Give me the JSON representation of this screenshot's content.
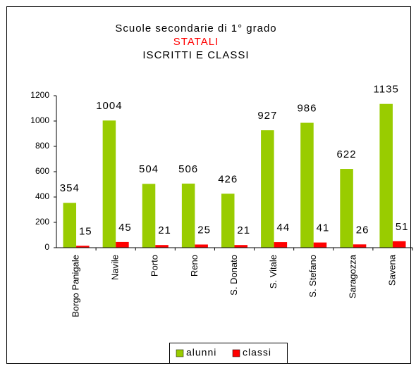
{
  "chart_data": {
    "type": "bar",
    "title": [
      "Scuole secondarie di 1° grado",
      "STATALI",
      "ISCRITTI E CLASSI"
    ],
    "title_colors": [
      "#000000",
      "#ff0000",
      "#000000"
    ],
    "categories": [
      "Borgo Panigale",
      "Navile",
      "Porto",
      "Reno",
      "S. Donato",
      "S. Vitale",
      "S. Stefano",
      "Saragozza",
      "Savena"
    ],
    "series": [
      {
        "name": "alunni",
        "color": "#99cc00",
        "values": [
          354,
          1004,
          504,
          506,
          426,
          927,
          986,
          622,
          1135
        ]
      },
      {
        "name": "classi",
        "color": "#ff0000",
        "values": [
          15,
          45,
          21,
          25,
          21,
          44,
          41,
          26,
          51
        ]
      }
    ],
    "ylim": [
      0,
      1200
    ],
    "yticks": [
      0,
      200,
      400,
      600,
      800,
      1000,
      1200
    ],
    "legend": "bottom"
  }
}
